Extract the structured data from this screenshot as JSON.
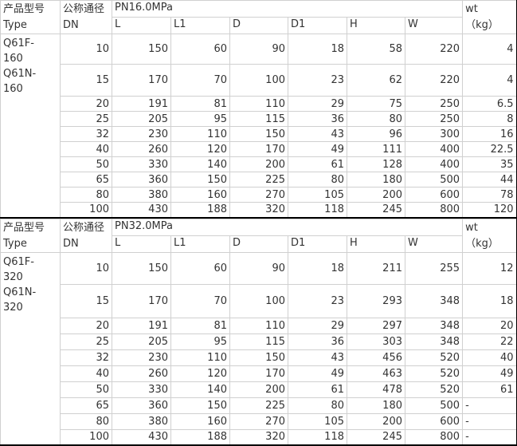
{
  "page": {
    "background": "#ffffff",
    "grid_border_color": "#d0d0d0",
    "section_border_color": "#000000",
    "text_color": "#333333"
  },
  "table": {
    "sections": [
      {
        "pressure_label": "PN16.0MPa",
        "type_header_cn": "产品型号",
        "type_header_en": "Type",
        "dn_header_cn": "公称通径",
        "dn_header_en": "DN",
        "dim_headers": [
          "L",
          "L1",
          "D",
          "D1",
          "H",
          "W"
        ],
        "wt_header_line1": "wt",
        "wt_header_line2": "（kg）",
        "type_models": [
          "Q61F-160",
          "Q61N-160"
        ],
        "rows": [
          {
            "dn": "10",
            "values": [
              "150",
              "60",
              "90",
              "18",
              "58",
              "220"
            ],
            "wt": "4"
          },
          {
            "dn": "15",
            "values": [
              "170",
              "70",
              "100",
              "23",
              "62",
              "220"
            ],
            "wt": "4"
          },
          {
            "dn": "20",
            "values": [
              "191",
              "81",
              "110",
              "29",
              "75",
              "250"
            ],
            "wt": "6.5"
          },
          {
            "dn": "25",
            "values": [
              "205",
              "95",
              "115",
              "36",
              "80",
              "250"
            ],
            "wt": "8"
          },
          {
            "dn": "32",
            "values": [
              "230",
              "110",
              "150",
              "43",
              "96",
              "300"
            ],
            "wt": "16"
          },
          {
            "dn": "40",
            "values": [
              "260",
              "120",
              "170",
              "49",
              "111",
              "400"
            ],
            "wt": "22.5"
          },
          {
            "dn": "50",
            "values": [
              "330",
              "140",
              "200",
              "61",
              "128",
              "400"
            ],
            "wt": "35"
          },
          {
            "dn": "65",
            "values": [
              "360",
              "150",
              "225",
              "80",
              "180",
              "500"
            ],
            "wt": "44"
          },
          {
            "dn": "80",
            "values": [
              "380",
              "160",
              "270",
              "105",
              "200",
              "600"
            ],
            "wt": "78"
          },
          {
            "dn": "100",
            "values": [
              "430",
              "188",
              "320",
              "118",
              "245",
              "800"
            ],
            "wt": "120"
          }
        ]
      },
      {
        "pressure_label": "PN32.0MPa",
        "type_header_cn": "产品型号",
        "type_header_en": "Type",
        "dn_header_cn": "公称通径",
        "dn_header_en": "DN",
        "dim_headers": [
          "L",
          "L1",
          "D",
          "D1",
          "H",
          "W"
        ],
        "wt_header_line1": "wt",
        "wt_header_line2": "（kg）",
        "type_models": [
          "Q61F-320",
          "Q61N-320"
        ],
        "rows": [
          {
            "dn": "10",
            "values": [
              "150",
              "60",
              "90",
              "18",
              "211",
              "255"
            ],
            "wt": "12"
          },
          {
            "dn": "15",
            "values": [
              "170",
              "70",
              "100",
              "23",
              "293",
              "348"
            ],
            "wt": "18"
          },
          {
            "dn": "20",
            "values": [
              "191",
              "81",
              "110",
              "29",
              "297",
              "348"
            ],
            "wt": "20"
          },
          {
            "dn": "25",
            "values": [
              "205",
              "95",
              "115",
              "36",
              "303",
              "348"
            ],
            "wt": "22"
          },
          {
            "dn": "32",
            "values": [
              "230",
              "110",
              "150",
              "43",
              "456",
              "520"
            ],
            "wt": "40"
          },
          {
            "dn": "40",
            "values": [
              "260",
              "120",
              "170",
              "49",
              "463",
              "520"
            ],
            "wt": "49"
          },
          {
            "dn": "50",
            "values": [
              "330",
              "140",
              "200",
              "61",
              "478",
              "520"
            ],
            "wt": "61"
          },
          {
            "dn": "65",
            "values": [
              "360",
              "150",
              "225",
              "80",
              "180",
              "500"
            ],
            "wt": "-"
          },
          {
            "dn": "80",
            "values": [
              "380",
              "160",
              "270",
              "105",
              "200",
              "600"
            ],
            "wt": "-"
          },
          {
            "dn": "100",
            "values": [
              "430",
              "188",
              "320",
              "118",
              "245",
              "800"
            ],
            "wt": "-"
          }
        ]
      }
    ]
  }
}
